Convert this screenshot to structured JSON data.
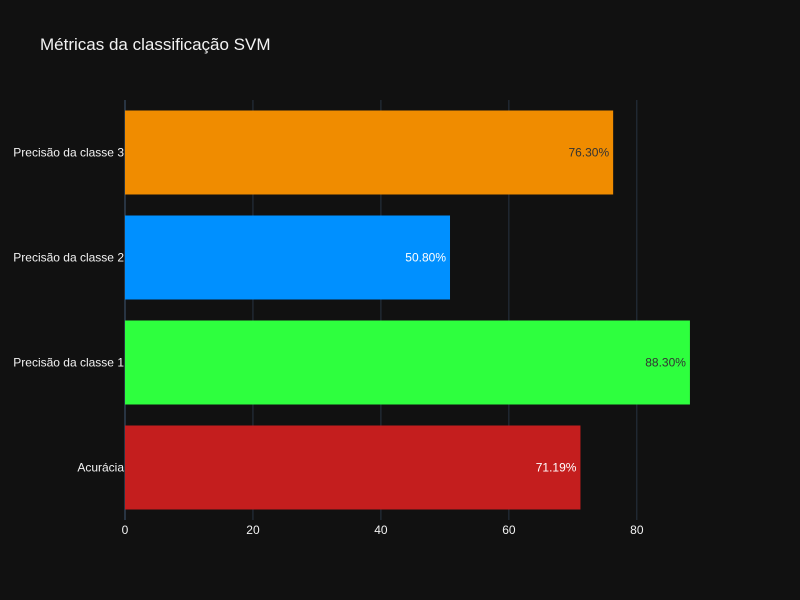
{
  "chart_data": {
    "type": "bar",
    "orientation": "horizontal",
    "title": "Métricas da classificação SVM",
    "xlabel": "",
    "ylabel": "",
    "xlim": [
      0,
      93
    ],
    "xticks": [
      0,
      20,
      40,
      60,
      80
    ],
    "grid": true,
    "legend": "none",
    "bars": [
      {
        "category": "Acurácia",
        "value": 71.19,
        "label": "71.19%",
        "color": "#c41e1e",
        "label_color": "#ffffff"
      },
      {
        "category": "Precisão da classe 1",
        "value": 88.3,
        "label": "88.30%",
        "color": "#2eff3e",
        "label_color": "#333333"
      },
      {
        "category": "Precisão da classe 2",
        "value": 50.8,
        "label": "50.80%",
        "color": "#0090ff",
        "label_color": "#ffffff"
      },
      {
        "category": "Precisão da classe 3",
        "value": 76.3,
        "label": "76.30%",
        "color": "#f08c00",
        "label_color": "#333333"
      }
    ]
  },
  "theme": {
    "background": "#111111",
    "gridline": "#283442",
    "text": "#f2f2f2"
  }
}
